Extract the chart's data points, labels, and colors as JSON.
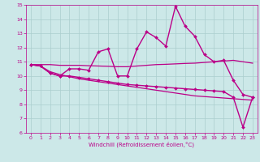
{
  "xlabel": "Windchill (Refroidissement éolien,°C)",
  "ylabel": "",
  "background_color": "#cce8e8",
  "grid_color": "#aacece",
  "line_color": "#bb0088",
  "xlim": [
    -0.5,
    23.5
  ],
  "ylim": [
    6,
    15
  ],
  "yticks": [
    6,
    7,
    8,
    9,
    10,
    11,
    12,
    13,
    14,
    15
  ],
  "xticks": [
    0,
    1,
    2,
    3,
    4,
    5,
    6,
    7,
    8,
    9,
    10,
    11,
    12,
    13,
    14,
    15,
    16,
    17,
    18,
    19,
    20,
    21,
    22,
    23
  ],
  "series": [
    {
      "x": [
        0,
        1,
        2,
        3,
        4,
        5,
        6,
        7,
        8,
        9,
        10,
        11,
        12,
        13,
        14,
        15,
        16,
        17,
        18,
        19,
        20,
        21,
        22,
        23
      ],
      "y": [
        10.8,
        10.7,
        10.2,
        10.0,
        10.5,
        10.5,
        10.4,
        11.7,
        11.9,
        10.0,
        10.0,
        11.9,
        13.1,
        12.7,
        12.1,
        14.9,
        13.5,
        12.8,
        11.5,
        11.0,
        11.1,
        9.7,
        8.7,
        8.5
      ],
      "marker": "D",
      "markersize": 2.0,
      "linewidth": 1.0
    },
    {
      "x": [
        0,
        1,
        2,
        3,
        4,
        5,
        6,
        7,
        8,
        9,
        10,
        11,
        12,
        13,
        14,
        15,
        16,
        17,
        18,
        19,
        20,
        21,
        22,
        23
      ],
      "y": [
        10.8,
        10.7,
        10.2,
        10.0,
        10.0,
        9.9,
        9.8,
        9.7,
        9.6,
        9.5,
        9.4,
        9.35,
        9.3,
        9.25,
        9.2,
        9.15,
        9.1,
        9.05,
        9.0,
        8.95,
        8.9,
        8.5,
        6.4,
        8.5
      ],
      "marker": "D",
      "markersize": 2.0,
      "linewidth": 1.0
    },
    {
      "x": [
        0,
        1,
        2,
        3,
        4,
        5,
        6,
        7,
        8,
        9,
        10,
        11,
        12,
        13,
        14,
        15,
        16,
        17,
        18,
        19,
        20,
        21,
        22,
        23
      ],
      "y": [
        10.8,
        10.8,
        10.8,
        10.75,
        10.75,
        10.75,
        10.72,
        10.7,
        10.68,
        10.65,
        10.65,
        10.7,
        10.75,
        10.8,
        10.82,
        10.85,
        10.88,
        10.9,
        10.95,
        11.0,
        11.05,
        11.1,
        11.0,
        10.9
      ],
      "marker": null,
      "markersize": 0,
      "linewidth": 0.9
    },
    {
      "x": [
        0,
        1,
        2,
        3,
        4,
        5,
        6,
        7,
        8,
        9,
        10,
        11,
        12,
        13,
        14,
        15,
        16,
        17,
        18,
        19,
        20,
        21,
        22,
        23
      ],
      "y": [
        10.8,
        10.7,
        10.3,
        10.1,
        9.95,
        9.8,
        9.7,
        9.6,
        9.5,
        9.4,
        9.3,
        9.2,
        9.1,
        9.0,
        8.9,
        8.8,
        8.7,
        8.6,
        8.55,
        8.5,
        8.45,
        8.4,
        8.35,
        8.3
      ],
      "marker": null,
      "markersize": 0,
      "linewidth": 0.9
    }
  ]
}
